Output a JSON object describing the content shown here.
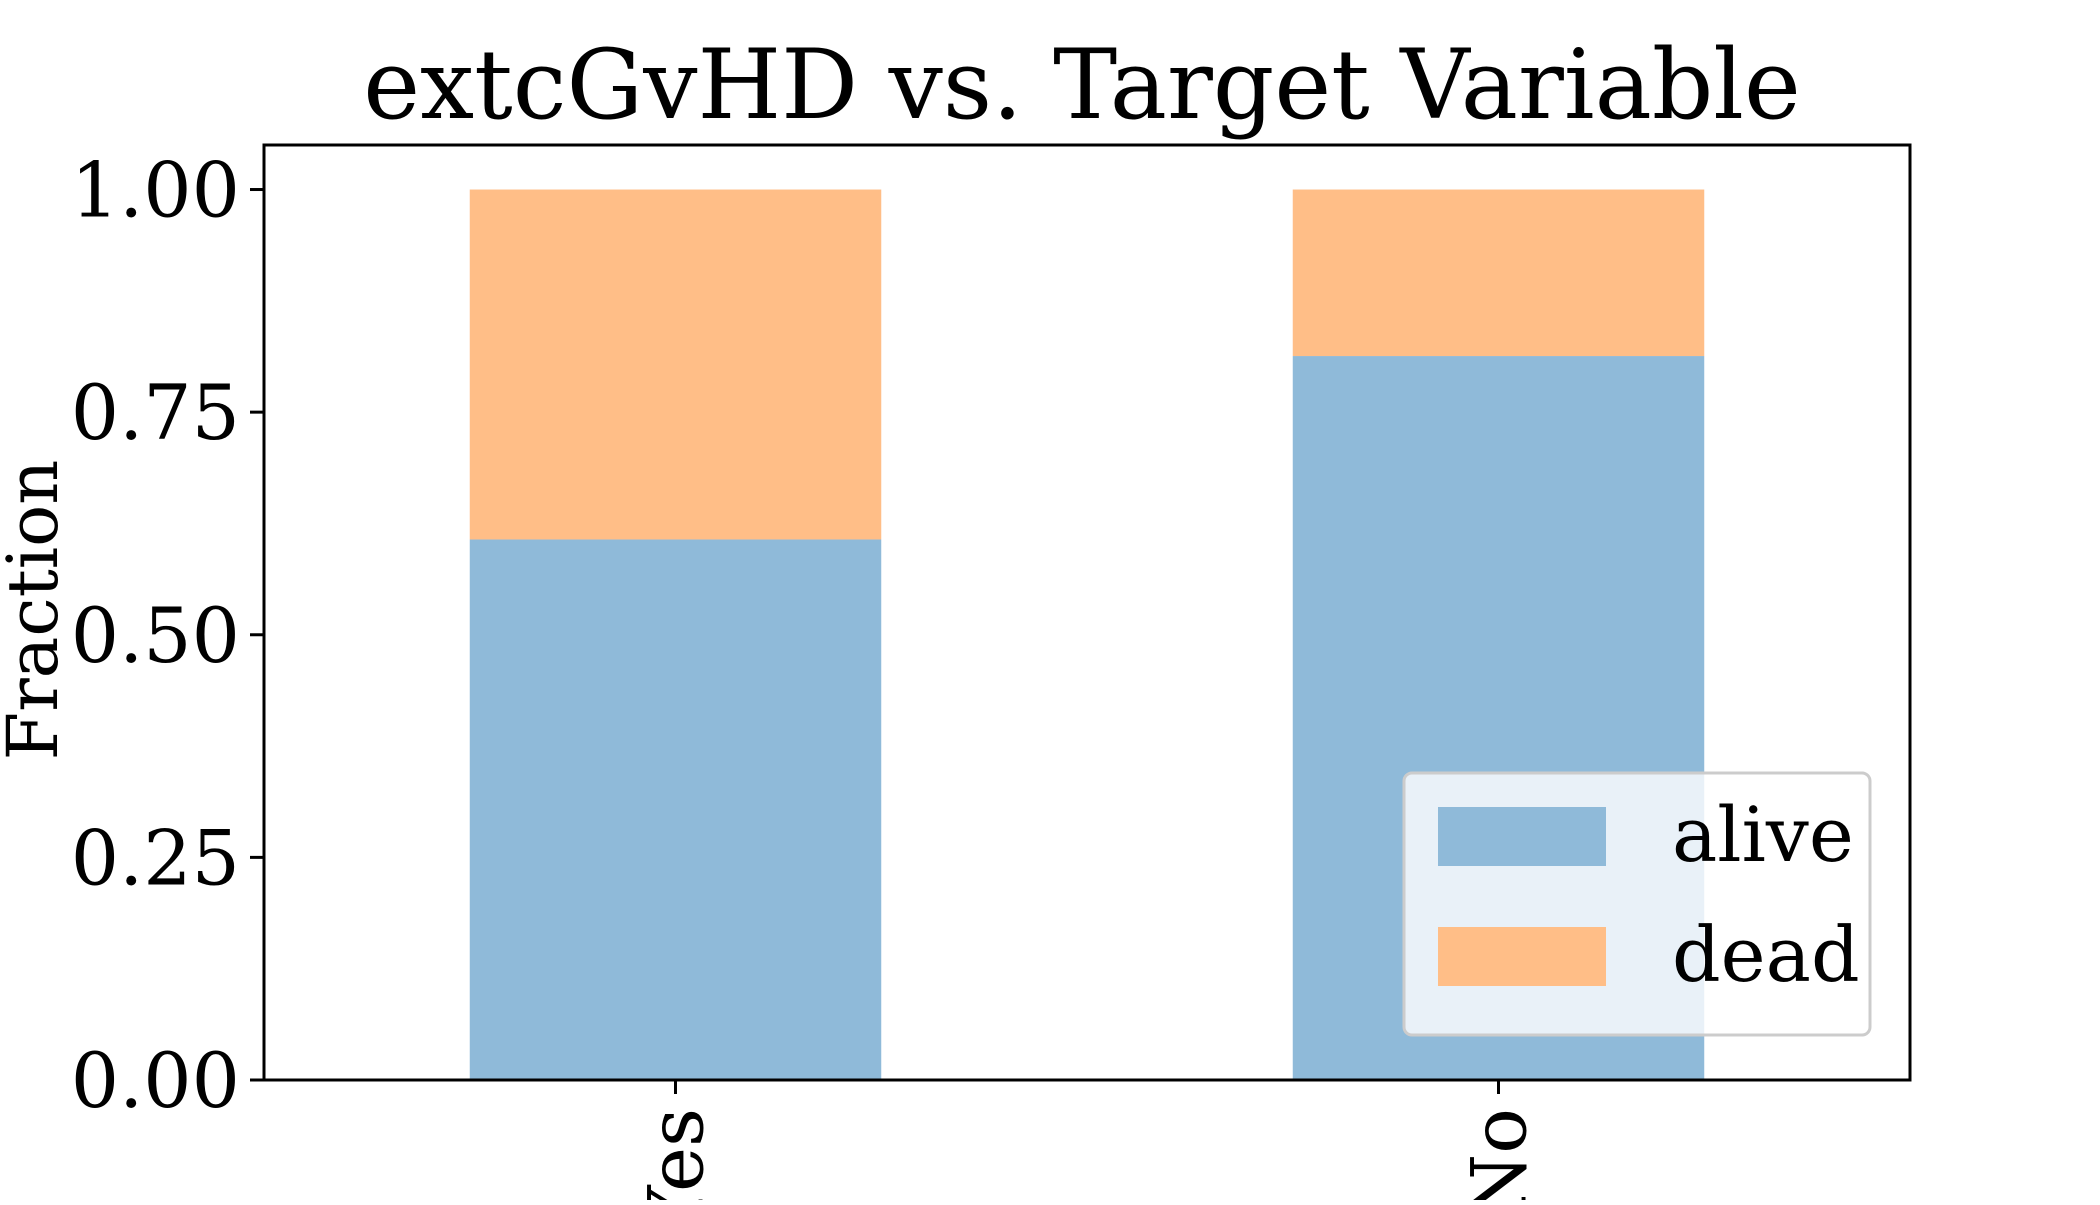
{
  "chart_data": {
    "type": "bar",
    "stacked": true,
    "title": "extcGvHD vs. Target Variable",
    "xlabel": "",
    "ylabel": "Fraction",
    "categories": [
      "Yes",
      "No"
    ],
    "series": [
      {
        "name": "alive",
        "values": [
          0.607,
          0.813
        ],
        "color": "#8fbad9"
      },
      {
        "name": "dead",
        "values": [
          0.393,
          0.187
        ],
        "color": "#ffbe87"
      }
    ],
    "ylim": [
      0,
      1.05
    ],
    "yticks": [
      0.0,
      0.25,
      0.5,
      0.75,
      1.0
    ],
    "ytick_labels": [
      "0.00",
      "0.25",
      "0.50",
      "0.75",
      "1.00"
    ],
    "xtick_rotation": 90,
    "grid": false,
    "legend": {
      "placement": "lower-right",
      "entries": [
        "alive",
        "dead"
      ]
    }
  }
}
